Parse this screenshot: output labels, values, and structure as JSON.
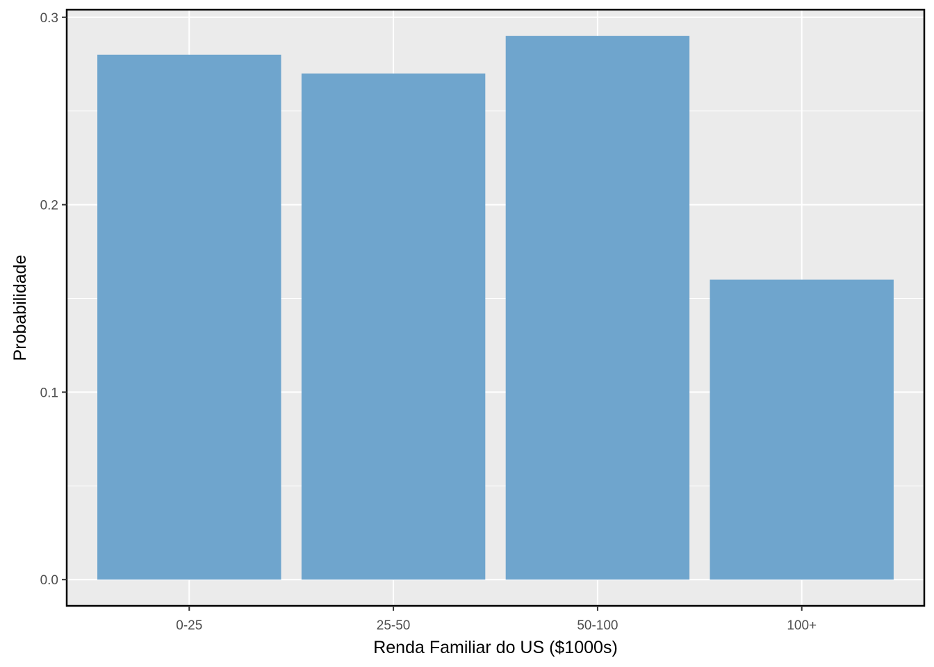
{
  "chart_data": {
    "type": "bar",
    "title": "",
    "xlabel": "Renda Familiar do US ($1000s)",
    "ylabel": "Probabilidade",
    "categories": [
      "0-25",
      "25-50",
      "50-100",
      "100+"
    ],
    "values": [
      0.28,
      0.27,
      0.29,
      0.16
    ],
    "ylim": [
      -0.014,
      0.304
    ],
    "yticks": [
      0.0,
      0.1,
      0.2,
      0.3
    ],
    "ytick_labels": [
      "0.0",
      "0.1",
      "0.2",
      "0.3"
    ],
    "grid": true,
    "legend": "none",
    "colors": {
      "bar": "#6fa5cd",
      "panel_background": "#ebebeb",
      "grid": "#ffffff",
      "border": "#000000"
    }
  }
}
